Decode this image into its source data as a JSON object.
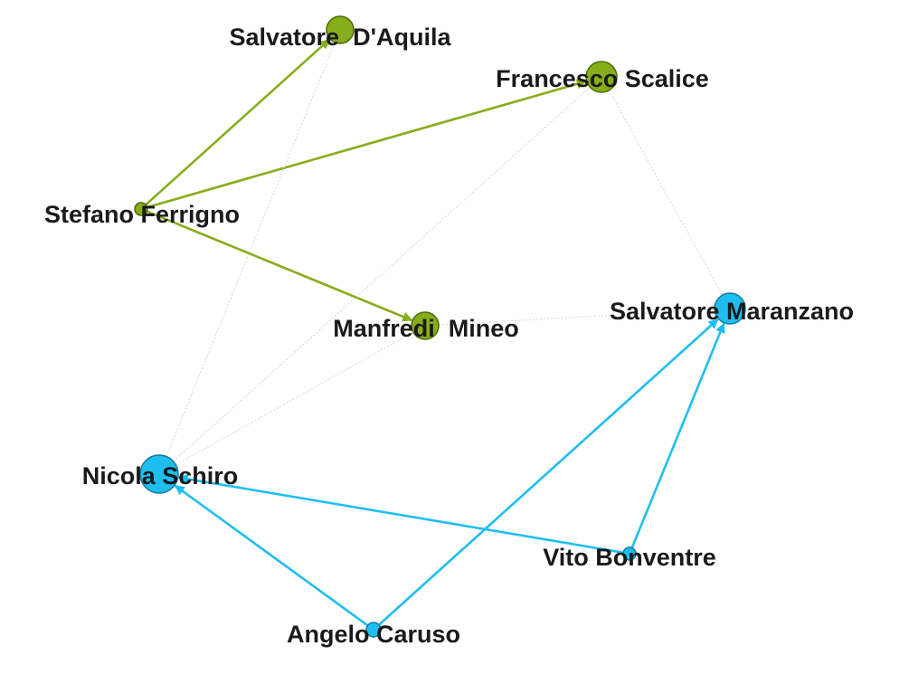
{
  "colors": {
    "green_group": "#86ad1a",
    "green_stroke": "#4d6b0a",
    "blue_group": "#1fbef0",
    "blue_stroke": "#147aa0",
    "faint_edge": "#d8d8c8"
  },
  "nodes": [
    {
      "id": "aquila",
      "label": "Salvatore  D'Aquila",
      "group": "green"
    },
    {
      "id": "scalice",
      "label": "Francesco Scalice",
      "group": "green"
    },
    {
      "id": "ferrigno",
      "label": "Stefano Ferrigno",
      "group": "green"
    },
    {
      "id": "mineo",
      "label": "Manfredi  Mineo",
      "group": "green"
    },
    {
      "id": "maranzano",
      "label": "Salvatore Maranzano",
      "group": "blue"
    },
    {
      "id": "schiro",
      "label": "Nicola Schiro",
      "group": "blue"
    },
    {
      "id": "bonventre",
      "label": "Vito Bonventre",
      "group": "blue"
    },
    {
      "id": "caruso",
      "label": "Angelo Caruso",
      "group": "blue"
    }
  ],
  "edges": [
    {
      "from": "ferrigno",
      "to": "aquila",
      "style": "green"
    },
    {
      "from": "ferrigno",
      "to": "scalice",
      "style": "green"
    },
    {
      "from": "ferrigno",
      "to": "mineo",
      "style": "green"
    },
    {
      "from": "caruso",
      "to": "schiro",
      "style": "blue"
    },
    {
      "from": "caruso",
      "to": "maranzano",
      "style": "blue"
    },
    {
      "from": "bonventre",
      "to": "schiro",
      "style": "blue"
    },
    {
      "from": "bonventre",
      "to": "maranzano",
      "style": "blue"
    },
    {
      "from": "schiro",
      "to": "aquila",
      "style": "faint"
    },
    {
      "from": "schiro",
      "to": "scalice",
      "style": "faint"
    },
    {
      "from": "schiro",
      "to": "mineo",
      "style": "faint"
    },
    {
      "from": "scalice",
      "to": "maranzano",
      "style": "faint"
    },
    {
      "from": "mineo",
      "to": "maranzano",
      "style": "faint"
    }
  ]
}
